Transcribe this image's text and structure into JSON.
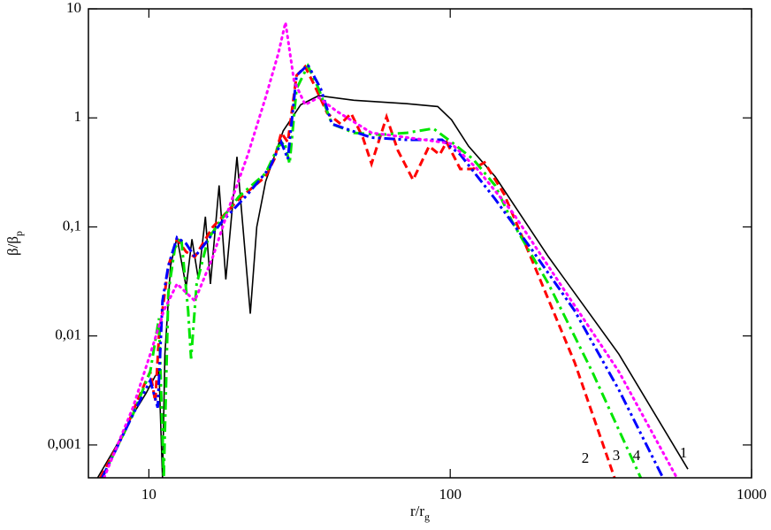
{
  "chart_data": {
    "type": "line",
    "xscale": "log",
    "yscale": "log",
    "xlabel": [
      "r/r",
      "g"
    ],
    "ylabel": [
      "β/β",
      "p"
    ],
    "xlim": [
      6.3,
      1000
    ],
    "ylim": [
      0.0005,
      10
    ],
    "xticks": [
      10,
      100,
      1000
    ],
    "yticks": [
      10,
      1,
      {
        "value": 0.1,
        "label": "0,1"
      },
      {
        "value": 0.01,
        "label": "0,01"
      },
      {
        "value": 0.001,
        "label": "0,001"
      }
    ],
    "series": [
      {
        "name": "1",
        "color": "#000000",
        "style": "solid",
        "x": [
          6.76,
          7.74,
          8.85,
          9.8,
          10.5,
          10.8,
          11.1,
          11.3,
          11.8,
          12.4,
          13.3,
          13.9,
          14.6,
          15.4,
          16.0,
          17.1,
          18.0,
          19.6,
          21.7,
          22.8,
          24.4,
          27.9,
          31.9,
          36.6,
          47.9,
          71.8,
          90.9,
          101,
          115,
          141,
          212,
          363,
          615
        ],
        "values": [
          0.0005,
          0.00095,
          0.0019,
          0.003,
          0.0043,
          0.0047,
          0.0005,
          0.0068,
          0.044,
          0.08,
          0.028,
          0.077,
          0.033,
          0.124,
          0.03,
          0.24,
          0.033,
          0.44,
          0.016,
          0.1,
          0.26,
          0.76,
          1.32,
          1.6,
          1.45,
          1.35,
          1.27,
          0.96,
          0.55,
          0.29,
          0.053,
          0.0068,
          0.0006
        ]
      },
      {
        "name": "2",
        "color": "#ff0000",
        "style": "dashed",
        "x": [
          6.9,
          8.28,
          9.48,
          10.1,
          10.5,
          10.8,
          11.2,
          11.6,
          12.4,
          13.3,
          14.2,
          16.3,
          19.9,
          24.4,
          26.1,
          27.5,
          28.9,
          30.9,
          33.0,
          35.3,
          39.1,
          43.3,
          46.9,
          51.3,
          54.8,
          61.5,
          67.1,
          75.3,
          85.1,
          92.2,
          97.3,
          108,
          119,
          130,
          151,
          185,
          259,
          351
        ],
        "values": [
          0.0005,
          0.0013,
          0.0032,
          0.0047,
          0.0025,
          0.01,
          0.021,
          0.044,
          0.077,
          0.059,
          0.053,
          0.1,
          0.18,
          0.29,
          0.42,
          0.73,
          0.6,
          2.45,
          2.95,
          2.03,
          1.1,
          0.88,
          1.1,
          0.66,
          0.38,
          1.02,
          0.5,
          0.27,
          0.55,
          0.46,
          0.6,
          0.34,
          0.34,
          0.39,
          0.2,
          0.053,
          0.0057,
          0.0005
        ]
      },
      {
        "name": "3",
        "color": "#00e600",
        "style": "dashdot",
        "x": [
          7.0,
          8.85,
          10.1,
          10.8,
          11.2,
          11.6,
          12.2,
          12.8,
          13.5,
          13.8,
          14.4,
          15.7,
          17.4,
          19.9,
          24.4,
          26.9,
          28.2,
          29.3,
          30.9,
          33.7,
          36.6,
          40.5,
          47.9,
          58.6,
          71.8,
          87.9,
          101,
          119,
          141,
          161,
          212,
          296,
          429
        ],
        "values": [
          0.0005,
          0.0019,
          0.0047,
          0.0145,
          0.0005,
          0.025,
          0.064,
          0.08,
          0.017,
          0.0062,
          0.03,
          0.077,
          0.117,
          0.19,
          0.31,
          0.55,
          0.6,
          0.38,
          1.85,
          3.0,
          1.85,
          0.88,
          0.73,
          0.7,
          0.73,
          0.8,
          0.6,
          0.42,
          0.24,
          0.11,
          0.03,
          0.0047,
          0.0005
        ]
      },
      {
        "name": "4",
        "color": "#0000ff",
        "style": "dashdotdot",
        "x": [
          7.0,
          8.85,
          10.1,
          10.7,
          11.1,
          11.6,
          12.4,
          13.3,
          14.2,
          17.4,
          21.3,
          25.2,
          27.5,
          28.9,
          30.9,
          33.7,
          37.2,
          40.5,
          54.8,
          71.8,
          93.9,
          108,
          141,
          185,
          259,
          363,
          508
        ],
        "values": [
          0.0005,
          0.0019,
          0.0039,
          0.0022,
          0.021,
          0.044,
          0.08,
          0.07,
          0.053,
          0.11,
          0.2,
          0.35,
          0.6,
          0.42,
          2.45,
          3.07,
          1.85,
          0.88,
          0.66,
          0.63,
          0.63,
          0.46,
          0.18,
          0.064,
          0.017,
          0.0032,
          0.0005
        ]
      },
      {
        "name": null,
        "color": "#ff00ff",
        "style": "dotted",
        "x": [
          7.1,
          8.85,
          10.1,
          11.2,
          12.4,
          14.2,
          16.3,
          18.6,
          21.3,
          24.4,
          26.9,
          28.4,
          30.3,
          33.0,
          36.6,
          41.8,
          54.8,
          82.1,
          101,
          123,
          161,
          242,
          363,
          565
        ],
        "values": [
          0.0005,
          0.0022,
          0.0068,
          0.017,
          0.03,
          0.021,
          0.053,
          0.16,
          0.46,
          1.54,
          3.9,
          7.5,
          2.2,
          1.32,
          1.54,
          1.16,
          0.73,
          0.63,
          0.58,
          0.34,
          0.136,
          0.025,
          0.0047,
          0.0005
        ]
      }
    ]
  }
}
